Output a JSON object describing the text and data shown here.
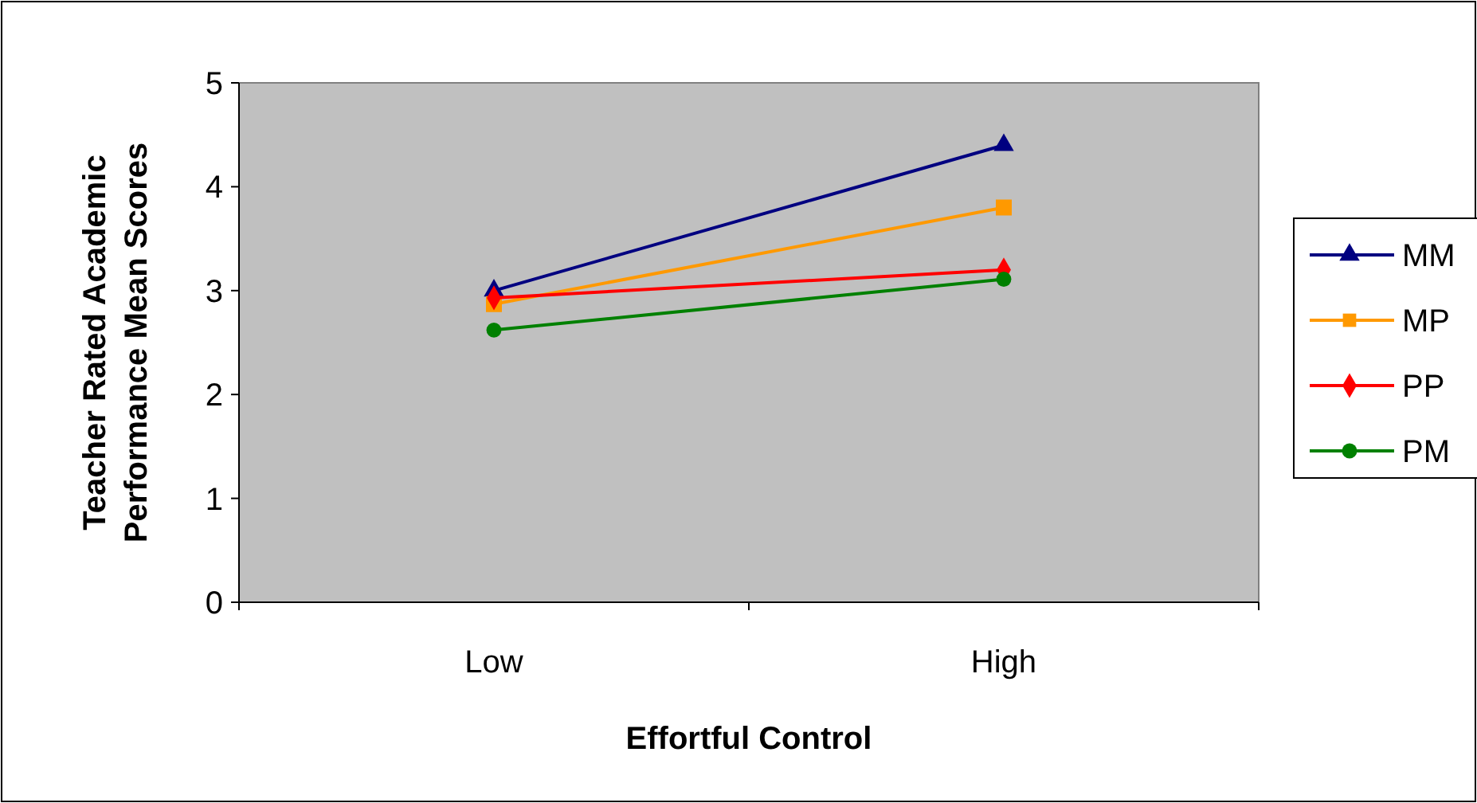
{
  "chart_data": {
    "type": "line",
    "xlabel": "Effortful Control",
    "ylabel": "Teacher Rated Academic Performance Mean Scores",
    "categories": [
      "Low",
      "High"
    ],
    "ylim": [
      0,
      5
    ],
    "yticks": [
      0,
      1,
      2,
      3,
      4,
      5
    ],
    "grid": false,
    "legend": "right",
    "series": [
      {
        "name": "MM",
        "color": "#000080",
        "marker": "triangle",
        "values": [
          3.0,
          4.4
        ]
      },
      {
        "name": "MP",
        "color": "#ff9900",
        "marker": "square",
        "values": [
          2.87,
          3.8
        ]
      },
      {
        "name": "PP",
        "color": "#ff0000",
        "marker": "diamond",
        "values": [
          2.93,
          3.2
        ]
      },
      {
        "name": "PM",
        "color": "#008000",
        "marker": "circle",
        "values": [
          2.62,
          3.11
        ]
      }
    ]
  }
}
